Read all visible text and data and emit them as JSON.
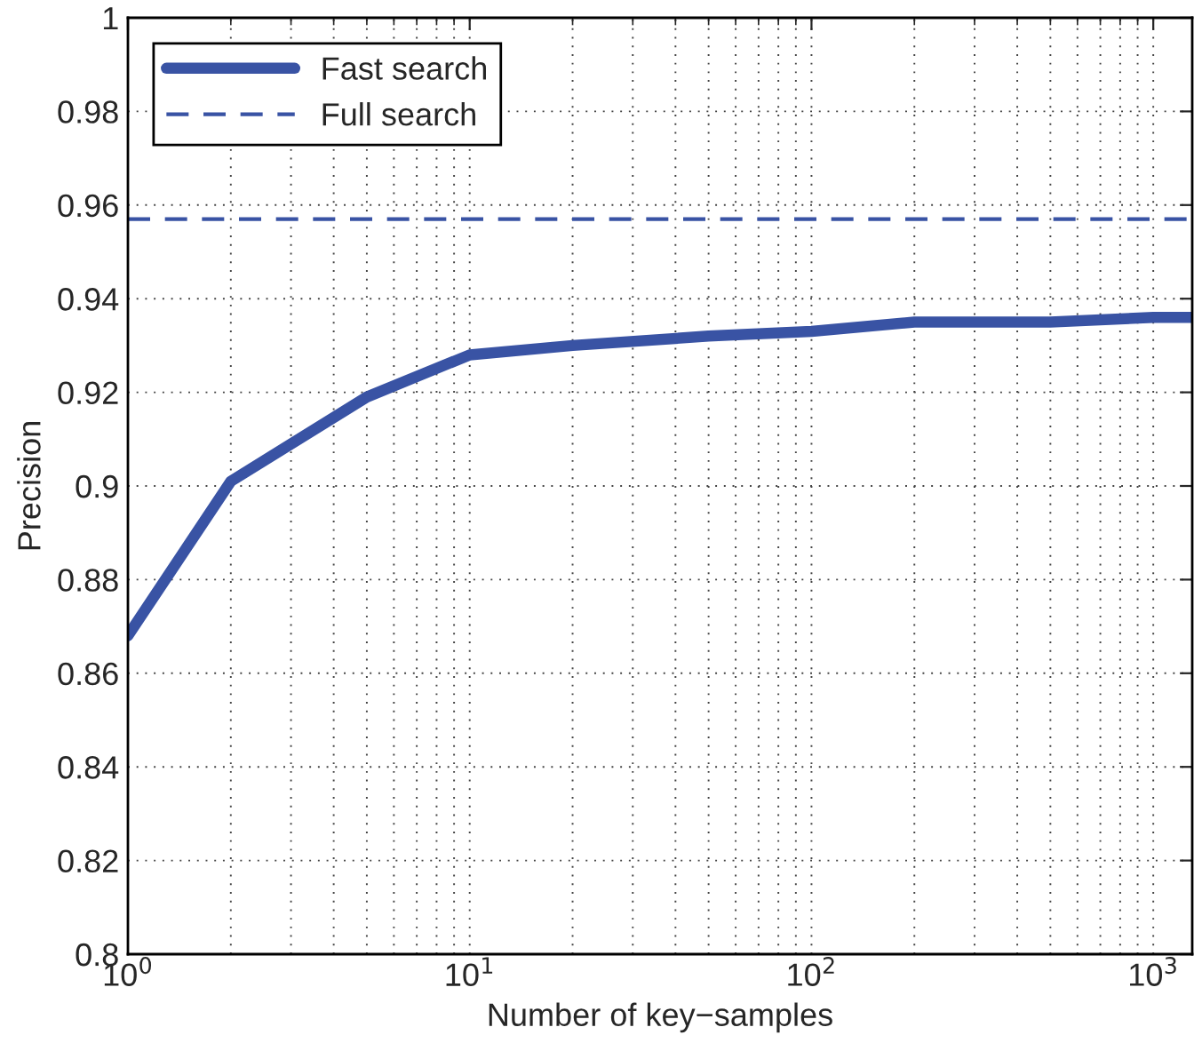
{
  "chart_data": {
    "type": "line",
    "xlabel": "Number of key−samples",
    "ylabel": "Precision",
    "series": [
      {
        "name": "Fast search",
        "color": "#3953a4",
        "x": [
          1,
          2,
          5,
          10,
          20,
          50,
          100,
          200,
          500,
          1000,
          1300
        ],
        "values": [
          0.868,
          0.901,
          0.919,
          0.928,
          0.93,
          0.932,
          0.933,
          0.935,
          0.935,
          0.936,
          0.936
        ]
      }
    ],
    "ref_lines": [
      {
        "axis": "y",
        "value": 0.957,
        "label": "Full search",
        "color": "#3953a4",
        "line_style": "dashed"
      }
    ],
    "log": "x",
    "xlim": [
      1,
      1300
    ],
    "ylim": [
      0.8,
      1
    ],
    "xticks": [
      {
        "value": 1,
        "label": "10$^{0}$"
      },
      {
        "value": 10,
        "label": "10$^{1}$"
      },
      {
        "value": 100,
        "label": "10$^{2}$"
      },
      {
        "value": 1000,
        "label": "10$^{3}$"
      }
    ],
    "yticks": [
      0.8,
      0.82,
      0.84,
      0.86,
      0.88,
      0.9,
      0.92,
      0.94,
      0.96,
      0.98,
      1
    ],
    "grid": true,
    "legend": "top left",
    "line_style": "solid",
    "marker": "none"
  }
}
